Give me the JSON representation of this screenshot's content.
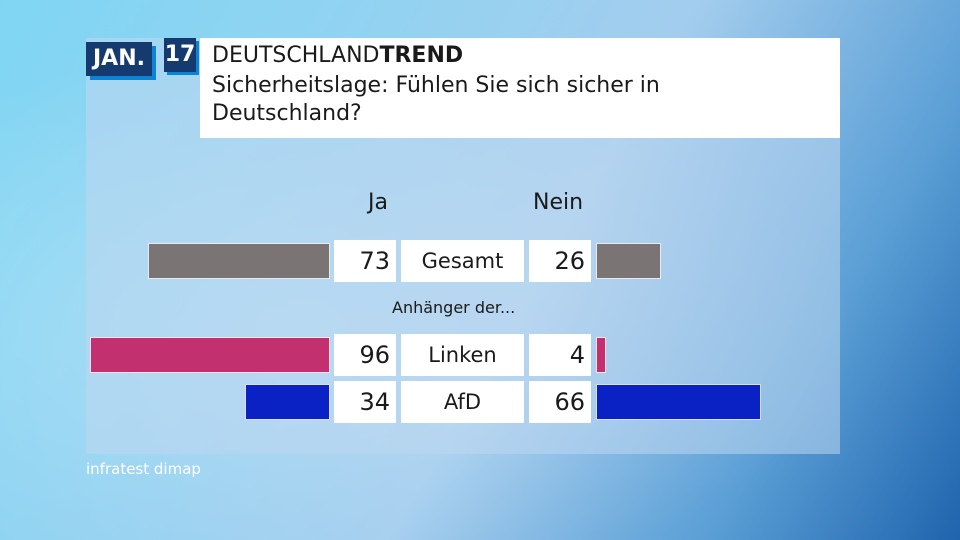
{
  "header": {
    "month": "JAN.",
    "day": "17",
    "brand_regular": "DEUTSCHLAND",
    "brand_bold": "TREND",
    "question": "Sicherheitslage: Fühlen Sie sich sicher in Deutschland?"
  },
  "source": "infratest dimap",
  "chart_data": {
    "type": "bar",
    "orientation": "horizontal-diverging",
    "title": "Sicherheitslage: Fühlen Sie sich sicher in Deutschland?",
    "column_headers": {
      "yes": "Ja",
      "no": "Nein"
    },
    "subgroup_label": "Anhänger der...",
    "categories": [
      "Gesamt",
      "Linken",
      "AfD"
    ],
    "series": [
      {
        "name": "Ja",
        "values": [
          73,
          96,
          34
        ]
      },
      {
        "name": "Nein",
        "values": [
          26,
          4,
          66
        ]
      }
    ],
    "colors": [
      "#7a7474",
      "#c2306f",
      "#0a22c4"
    ],
    "xlim": [
      0,
      100
    ],
    "grid": false
  }
}
